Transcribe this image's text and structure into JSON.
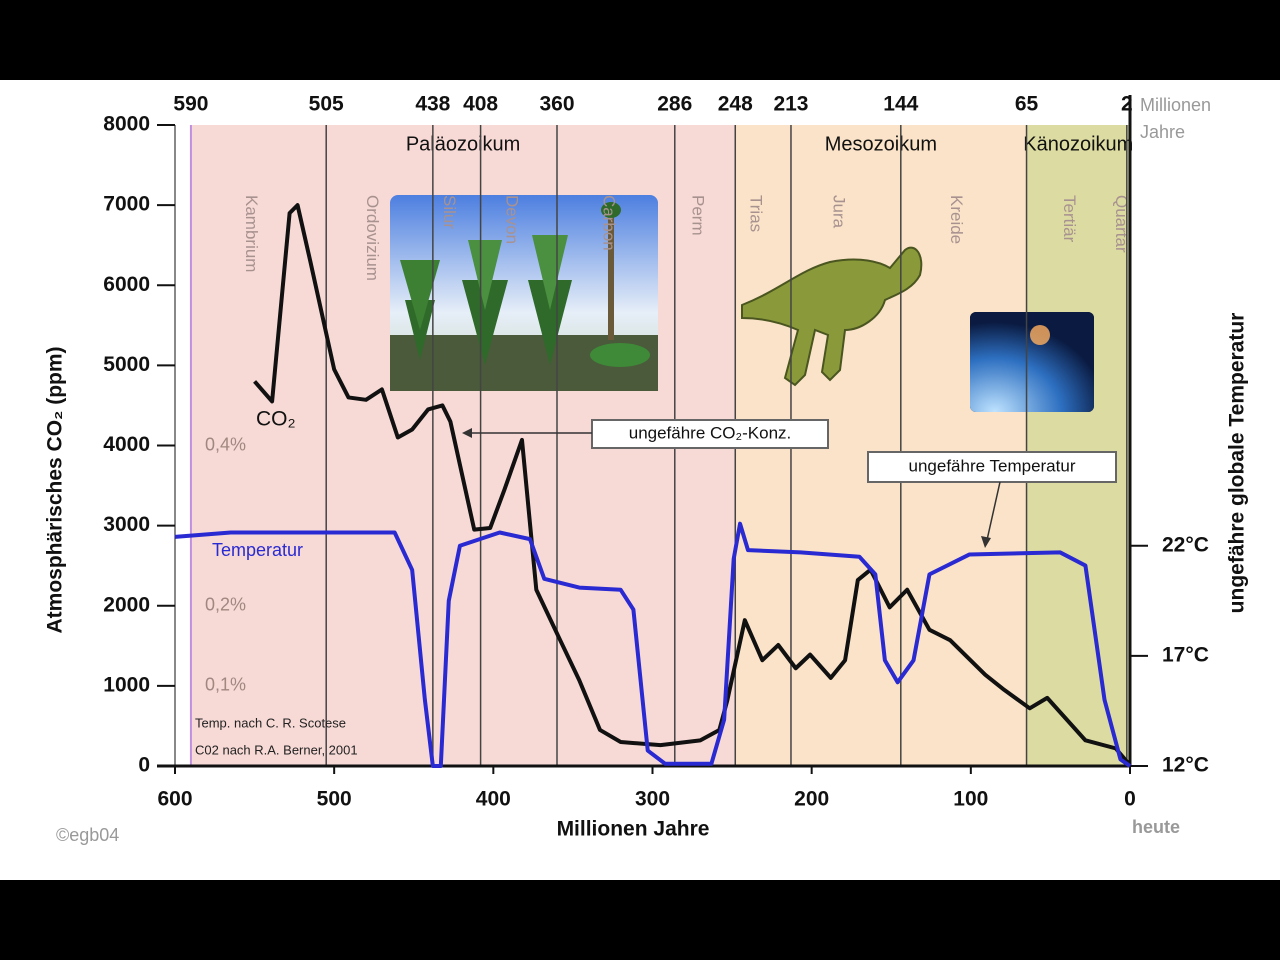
{
  "chart_data": {
    "type": "line",
    "xlabel": "Millionen Jahre",
    "ylabel": "Atmosphärisches CO₂ (ppm)",
    "y2label": "ungefähre globale Temperatur",
    "xlim": [
      600,
      0
    ],
    "xticks": [
      600,
      500,
      400,
      300,
      200,
      100,
      0
    ],
    "ylim": [
      0,
      8000
    ],
    "yticks": [
      0,
      1000,
      2000,
      3000,
      4000,
      5000,
      6000,
      7000,
      8000
    ],
    "y2lim": [
      12,
      41.1
    ],
    "y2ticks": [
      {
        "value": 12,
        "label": "12°C"
      },
      {
        "value": 17,
        "label": "17°C"
      },
      {
        "value": 22,
        "label": "22°C"
      }
    ],
    "top_ticks": [
      590,
      505,
      438,
      408,
      360,
      286,
      248,
      213,
      144,
      65,
      2
    ],
    "top_axis_label": [
      "Millionen",
      "Jahre"
    ],
    "x_end_label": "heute",
    "eras": [
      {
        "name": "Paläozoikum",
        "color": "#f7dad6",
        "periods": [
          "Kambrium",
          "Ordovizium",
          "Silur",
          "Devon",
          "Carbon",
          "Perm"
        ]
      },
      {
        "name": "Mesozoikum",
        "color": "#fae3c8",
        "periods": [
          "Trias",
          "Jura",
          "Kreide"
        ]
      },
      {
        "name": "Känozoikum",
        "color": "#dcdca2",
        "periods": [
          "Tertiär",
          "Quartär"
        ]
      }
    ],
    "co2_percent_labels": [
      {
        "value": 4000,
        "label": "0,4%"
      },
      {
        "value": 2000,
        "label": "0,2%"
      },
      {
        "value": 1000,
        "label": "0,1%"
      }
    ],
    "series": [
      {
        "name": "CO₂",
        "color": "#111111",
        "x": [
          550,
          539,
          528,
          523,
          515,
          500,
          491,
          480,
          470,
          460,
          451,
          441,
          432,
          427,
          412,
          402,
          393,
          382,
          373,
          358,
          346,
          333,
          320,
          295,
          270,
          258,
          253,
          242,
          231,
          221,
          210,
          201,
          188,
          179,
          171,
          163,
          151,
          140,
          126,
          113,
          91,
          79,
          63,
          52,
          28,
          9,
          0
        ],
        "values": [
          4800,
          4550,
          6900,
          7000,
          6300,
          4950,
          4600,
          4570,
          4700,
          4100,
          4200,
          4450,
          4500,
          4300,
          2950,
          2970,
          3450,
          4070,
          2200,
          1570,
          1070,
          450,
          300,
          260,
          320,
          450,
          820,
          1820,
          1320,
          1510,
          1220,
          1390,
          1100,
          1320,
          2320,
          2450,
          1980,
          2200,
          1700,
          1570,
          1140,
          950,
          720,
          850,
          320,
          220,
          10
        ]
      },
      {
        "name": "Temperatur",
        "color": "#2a2ad2",
        "axis": "y2",
        "x": [
          600,
          565,
          462,
          451,
          443,
          438,
          433,
          428,
          421,
          396,
          377,
          368,
          346,
          320,
          312,
          303,
          292,
          263,
          255,
          249,
          245,
          240,
          207,
          170,
          160,
          154,
          146,
          136,
          126,
          101,
          44,
          28,
          16,
          6,
          0
        ],
        "values": [
          22.4,
          22.6,
          22.6,
          20.9,
          15,
          12,
          12,
          19.5,
          22,
          22.6,
          22.3,
          20.5,
          20.1,
          20,
          19.1,
          12.7,
          12.1,
          12.1,
          14.1,
          21.4,
          23,
          21.8,
          21.7,
          21.5,
          20.7,
          16.8,
          15.8,
          16.8,
          20.7,
          21.6,
          21.7,
          21.1,
          15,
          12.3,
          12
        ]
      }
    ],
    "annotations": [
      "ungefähre CO₂-Konz.",
      "ungefähre Temperatur",
      "Temp. nach C. R. Scotese",
      "C02 nach R.A. Berner, 2001"
    ],
    "copyright": "©egb04"
  }
}
